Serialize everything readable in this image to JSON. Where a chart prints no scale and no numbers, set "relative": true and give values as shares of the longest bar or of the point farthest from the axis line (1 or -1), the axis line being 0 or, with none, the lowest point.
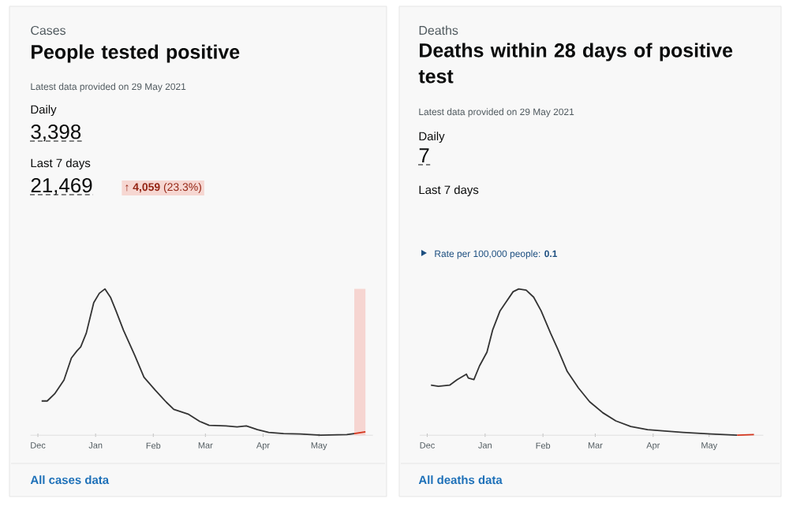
{
  "chart_data": [
    {
      "type": "line",
      "subtitle": "Cases",
      "title": "People tested positive",
      "relative": true,
      "annotations": [
        "Latest data provided on 29 May 2021",
        "Daily",
        "3,398",
        "Last 7 days",
        "21,469",
        "↑ **4,059** (23.3%)",
        "All cases data"
      ],
      "xlim": [
        "2020-11-27",
        "2021-05-30"
      ],
      "xticks": [
        {
          "value": "2020-12-01",
          "label": "Dec"
        },
        {
          "value": "2021-01-01",
          "label": "Jan"
        },
        {
          "value": "2021-02-01",
          "label": "Feb"
        },
        {
          "value": "2021-03-01",
          "label": "Mar"
        },
        {
          "value": "2021-04-01",
          "label": "Apr"
        },
        {
          "value": "2021-05-01",
          "label": "May"
        }
      ],
      "bands": [
        {
          "axis": "x",
          "from": "2021-05-20",
          "to": "2021-05-26",
          "color": "#f6d5d1"
        }
      ],
      "series": [
        {
          "color": "#333333",
          "x": [
            "2020-12-03",
            "2020-12-06",
            "2020-12-10",
            "2020-12-15",
            "2020-12-19",
            "2020-12-22",
            "2020-12-24",
            "2020-12-27",
            "2020-12-31",
            "2021-01-03",
            "2021-01-06",
            "2021-01-09",
            "2021-01-12",
            "2021-01-16",
            "2021-01-22",
            "2021-01-27",
            "2021-02-02",
            "2021-02-08",
            "2021-02-12",
            "2021-02-20",
            "2021-02-26",
            "2021-03-03",
            "2021-03-12",
            "2021-03-18",
            "2021-03-23",
            "2021-03-29",
            "2021-04-04",
            "2021-04-12",
            "2021-04-21",
            "2021-05-02",
            "2021-05-16",
            "2021-05-20"
          ],
          "values": [
            0.234,
            0.234,
            0.283,
            0.377,
            0.528,
            0.577,
            0.604,
            0.698,
            0.906,
            0.97,
            1,
            0.943,
            0.849,
            0.717,
            0.547,
            0.396,
            0.309,
            0.226,
            0.177,
            0.143,
            0.094,
            0.068,
            0.064,
            0.057,
            0.064,
            0.038,
            0.019,
            0.011,
            0.008,
            0,
            0.004,
            0.011
          ]
        },
        {
          "color": "#d4351c",
          "x": [
            "2021-05-20",
            "2021-05-26"
          ],
          "values": [
            0.011,
            0.023
          ]
        }
      ]
    },
    {
      "type": "line",
      "subtitle": "Deaths",
      "title": "Deaths within 28 days of positive test",
      "relative": true,
      "annotations": [
        "Latest data provided on 29 May 2021",
        "Daily",
        "7",
        "Last 7 days",
        "Rate per 100,000 people: **0.1**",
        "All deaths data"
      ],
      "xlim": [
        "2020-11-27",
        "2021-05-30"
      ],
      "xticks": [
        {
          "value": "2020-12-01",
          "label": "Dec"
        },
        {
          "value": "2021-01-01",
          "label": "Jan"
        },
        {
          "value": "2021-02-01",
          "label": "Feb"
        },
        {
          "value": "2021-03-01",
          "label": "Mar"
        },
        {
          "value": "2021-04-01",
          "label": "Apr"
        },
        {
          "value": "2021-05-01",
          "label": "May"
        }
      ],
      "series": [
        {
          "color": "#333333",
          "x": [
            "2020-12-03",
            "2020-12-07",
            "2020-12-13",
            "2020-12-17",
            "2020-12-22",
            "2020-12-23",
            "2020-12-26",
            "2020-12-29",
            "2021-01-02",
            "2021-01-05",
            "2021-01-09",
            "2021-01-12",
            "2021-01-16",
            "2021-01-19",
            "2021-01-23",
            "2021-01-27",
            "2021-01-31",
            "2021-02-05",
            "2021-02-09",
            "2021-02-14",
            "2021-02-20",
            "2021-02-26",
            "2021-03-05",
            "2021-03-12",
            "2021-03-20",
            "2021-03-29",
            "2021-04-06",
            "2021-04-17",
            "2021-05-02",
            "2021-05-16"
          ],
          "values": [
            0.342,
            0.335,
            0.342,
            0.38,
            0.417,
            0.391,
            0.38,
            0.474,
            0.568,
            0.718,
            0.85,
            0.906,
            0.981,
            1,
            0.992,
            0.944,
            0.85,
            0.699,
            0.586,
            0.436,
            0.323,
            0.229,
            0.154,
            0.098,
            0.06,
            0.038,
            0.03,
            0.019,
            0.008,
            0
          ]
        },
        {
          "color": "#d4351c",
          "x": [
            "2021-05-16",
            "2021-05-25"
          ],
          "values": [
            0,
            0.004
          ]
        }
      ]
    }
  ]
}
